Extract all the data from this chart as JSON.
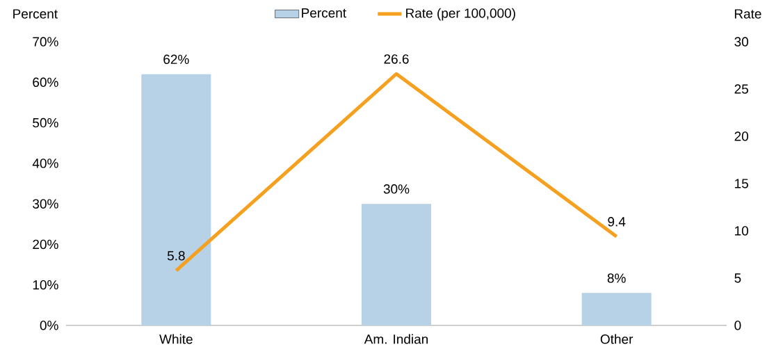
{
  "chart_data": {
    "type": "bar",
    "categories": [
      "White",
      "Am. Indian",
      "Other"
    ],
    "ylabel": "Percent",
    "y2label": "Rate",
    "ylim": [
      0,
      70
    ],
    "yticks": [
      {
        "value": 0,
        "label": "0%"
      },
      {
        "value": 10,
        "label": "10%"
      },
      {
        "value": 20,
        "label": "20%"
      },
      {
        "value": 30,
        "label": "30%"
      },
      {
        "value": 40,
        "label": "40%"
      },
      {
        "value": 50,
        "label": "50%"
      },
      {
        "value": 60,
        "label": "60%"
      },
      {
        "value": 70,
        "label": "70%"
      }
    ],
    "y2lim": [
      0,
      30
    ],
    "y2ticks": [
      0,
      5,
      10,
      15,
      20,
      25,
      30
    ],
    "legend": "top",
    "line_style": "solid",
    "series": [
      {
        "name": "Percent",
        "type": "bar",
        "color": "#b7d1e6",
        "values": [
          62,
          30,
          8
        ],
        "value_labels": [
          "62%",
          "30%",
          "8%"
        ]
      },
      {
        "name": "Rate (per 100,000)",
        "type": "line",
        "axis": "y2",
        "color": "#f5a01f",
        "values": [
          5.8,
          26.6,
          9.4
        ],
        "value_labels": [
          "5.8",
          "26.6",
          "9.4"
        ]
      }
    ]
  }
}
